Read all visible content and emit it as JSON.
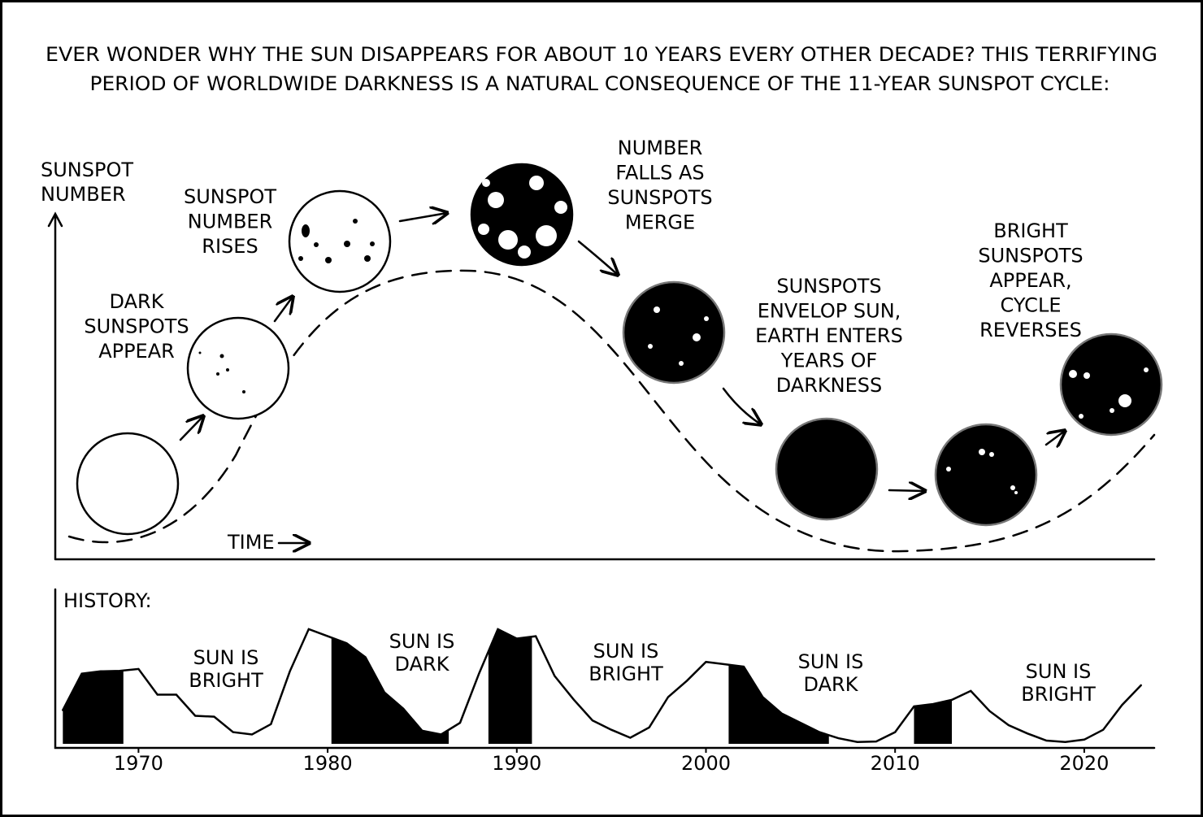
{
  "title": {
    "lines": [
      "EVER WONDER WHY THE SUN DISAPPEARS FOR ABOUT 10 YEARS EVERY OTHER DECADE? THIS TERRIFYING",
      "PERIOD OF WORLDWIDE DARKNESS IS A NATURAL CONSEQUENCE OF THE 11-YEAR SUNSPOT CYCLE:"
    ]
  },
  "diagram": {
    "y_axis_label": [
      "SUNSPOT",
      "NUMBER"
    ],
    "x_axis_label": "TIME",
    "captions": [
      {
        "lines": [
          "DARK",
          "SUNSPOTS",
          "APPEAR"
        ]
      },
      {
        "lines": [
          "SUNSPOT",
          "NUMBER",
          "RISES"
        ]
      },
      {
        "lines": [
          "NUMBER",
          "FALLS AS",
          "SUNSPOTS",
          "MERGE"
        ]
      },
      {
        "lines": [
          "SUNSPOTS",
          "ENVELOP SUN,",
          "EARTH ENTERS",
          "YEARS OF",
          "DARKNESS"
        ]
      },
      {
        "lines": [
          "BRIGHT",
          "SUNSPOTS",
          "APPEAR,",
          "CYCLE",
          "REVERSES"
        ]
      }
    ]
  },
  "chart_data": {
    "type": "area",
    "title": "HISTORY:",
    "x": [
      1966,
      1967,
      1968,
      1969,
      1970,
      1971,
      1972,
      1973,
      1974,
      1975,
      1976,
      1977,
      1978,
      1979,
      1980,
      1981,
      1982,
      1983,
      1984,
      1985,
      1986,
      1987,
      1988,
      1989,
      1990,
      1991,
      1992,
      1993,
      1994,
      1995,
      1996,
      1997,
      1998,
      1999,
      2000,
      2001,
      2002,
      2003,
      2004,
      2005,
      2006,
      2007,
      2008,
      2009,
      2010,
      2011,
      2012,
      2013,
      2014,
      2015,
      2016,
      2017,
      2018,
      2019,
      2020,
      2021,
      2022,
      2023
    ],
    "values": [
      72,
      150,
      155,
      156,
      160,
      105,
      105,
      60,
      58,
      25,
      20,
      42,
      155,
      245,
      230,
      215,
      185,
      110,
      75,
      28,
      20,
      45,
      150,
      245,
      225,
      230,
      145,
      95,
      50,
      30,
      13,
      35,
      100,
      135,
      175,
      170,
      165,
      100,
      65,
      45,
      25,
      12,
      4,
      5,
      25,
      80,
      85,
      94,
      113,
      70,
      40,
      22,
      7,
      4,
      9,
      30,
      83,
      125
    ],
    "dark_periods": [
      [
        1965.8,
        1969.2
      ],
      [
        1980.2,
        1986.4
      ],
      [
        1988.5,
        1990.8
      ],
      [
        2001.2,
        2006.5
      ],
      [
        2011,
        2013
      ]
    ],
    "xlim": [
      1965.6,
      2023.7
    ],
    "xticks": [
      1970,
      1980,
      1990,
      2000,
      2010,
      2020
    ],
    "ylim": [
      0,
      330
    ],
    "annotations": [
      [
        "SUN IS",
        "BRIGHT"
      ],
      [
        "SUN IS",
        "DARK"
      ],
      [
        "SUN IS",
        "BRIGHT"
      ],
      [
        "SUN IS",
        "DARK"
      ],
      [
        "SUN IS",
        "BRIGHT"
      ]
    ]
  }
}
